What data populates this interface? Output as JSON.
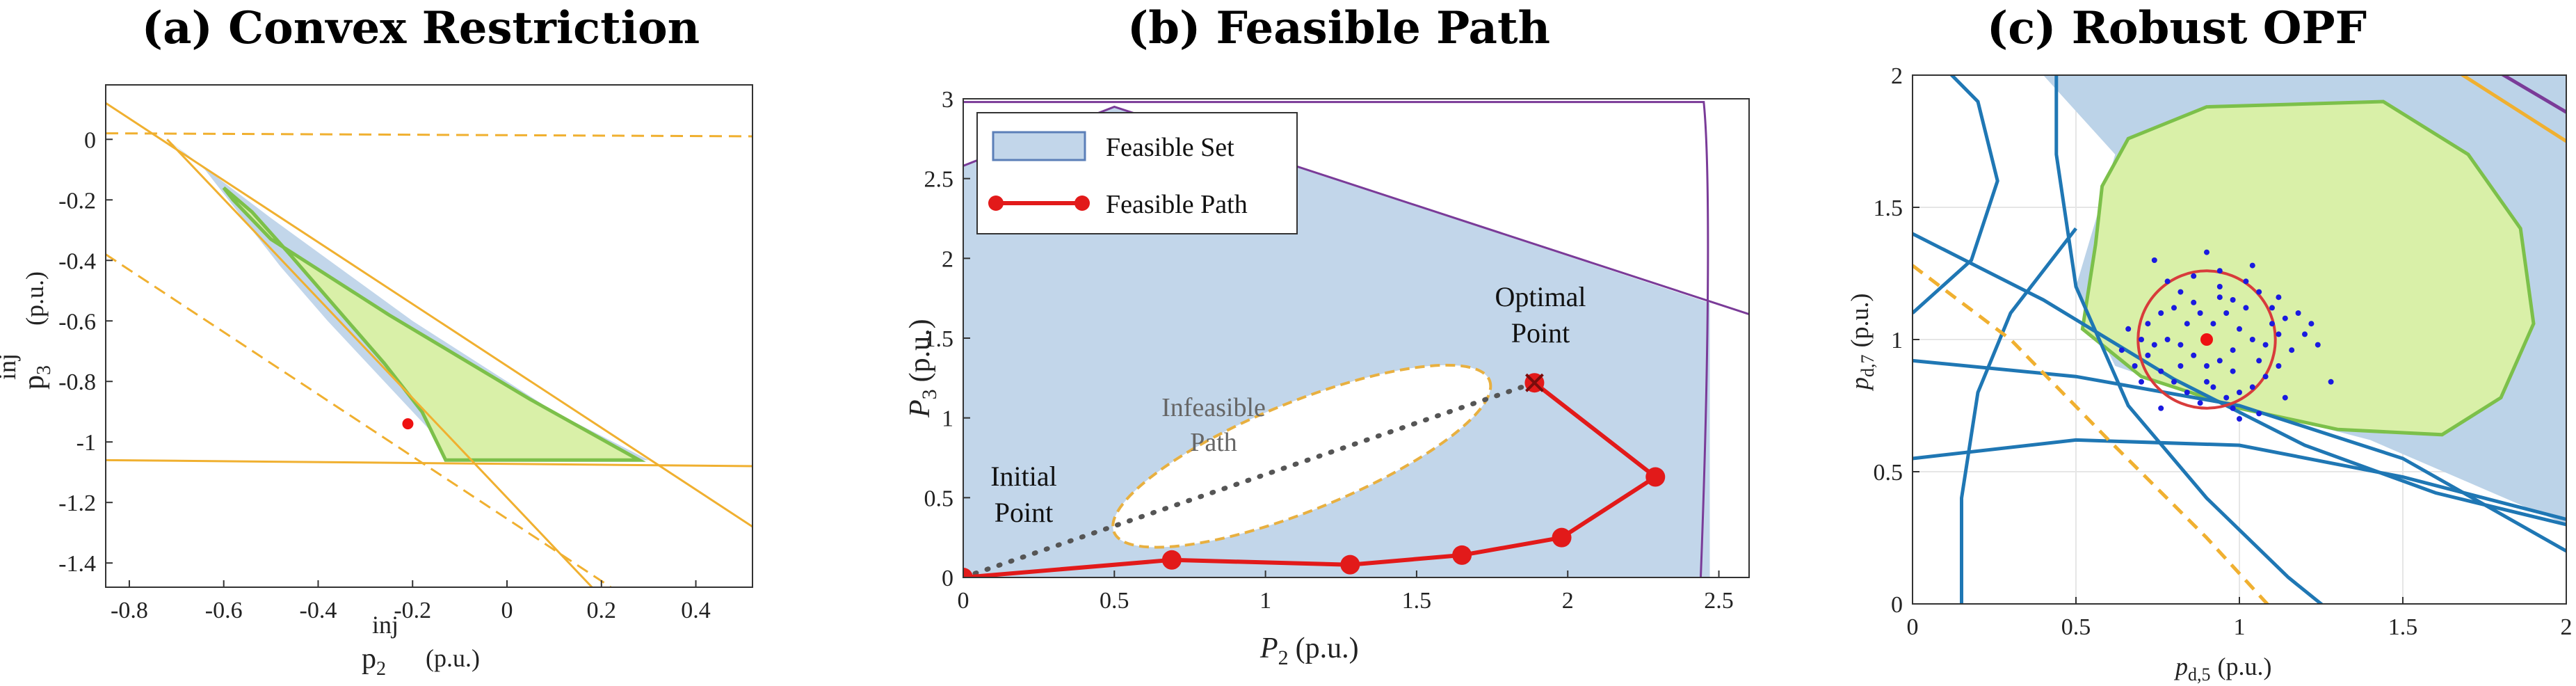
{
  "chart_data": [
    {
      "type": "area",
      "title": "(a) Convex Restriction",
      "xlabel": "p",
      "xlabel_sup": "inj",
      "xlabel_sub": "2",
      "xlabel_unit": "(p.u.)",
      "ylabel": "p",
      "ylabel_sup": "inj",
      "ylabel_sub": "3",
      "ylabel_unit": "(p.u.)",
      "xlim": [
        -0.85,
        0.52
      ],
      "ylim": [
        -1.48,
        0.18
      ],
      "xticks": [
        "-0.8",
        "-0.6",
        "-0.4",
        "-0.2",
        "0",
        "0.2",
        "0.4"
      ],
      "xtick_values": [
        -0.8,
        -0.6,
        -0.4,
        -0.2,
        0,
        0.2,
        0.4
      ],
      "yticks": [
        "0",
        "-0.2",
        "-0.4",
        "-0.6",
        "-0.8",
        "-1",
        "-1.2",
        "-1.4"
      ],
      "ytick_values": [
        0,
        -0.2,
        -0.4,
        -0.6,
        -0.8,
        -1,
        -1.2,
        -1.4
      ],
      "feasible_region": [
        [
          -0.72,
          0.0
        ],
        [
          -0.64,
          -0.1
        ],
        [
          -0.56,
          -0.26
        ],
        [
          -0.48,
          -0.42
        ],
        [
          -0.38,
          -0.6
        ],
        [
          -0.26,
          -0.8
        ],
        [
          -0.14,
          -1.0
        ],
        [
          -0.1,
          -1.06
        ],
        [
          0.3,
          -1.06
        ],
        [
          0.1,
          -0.9
        ],
        [
          -0.2,
          -0.6
        ],
        [
          -0.5,
          -0.26
        ]
      ],
      "convex_restriction": [
        [
          -0.6,
          -0.16
        ],
        [
          -0.54,
          -0.24
        ],
        [
          -0.46,
          -0.38
        ],
        [
          -0.36,
          -0.56
        ],
        [
          -0.26,
          -0.74
        ],
        [
          -0.18,
          -0.9
        ],
        [
          -0.13,
          -1.06
        ],
        [
          0.28,
          -1.06
        ],
        [
          0.05,
          -0.86
        ],
        [
          -0.25,
          -0.58
        ],
        [
          -0.5,
          -0.33
        ],
        [
          -0.58,
          -0.2
        ]
      ],
      "operating_point": {
        "x": -0.21,
        "y": -0.94
      },
      "constraint_lines_solid": [
        [
          [
            -0.85,
            0.12
          ],
          [
            0.52,
            -1.28
          ]
        ],
        [
          [
            -0.85,
            -1.06
          ],
          [
            0.52,
            -1.08
          ]
        ],
        [
          [
            -0.72,
            0.0
          ],
          [
            0.18,
            -1.48
          ]
        ]
      ],
      "constraint_lines_dashed": [
        [
          [
            -0.85,
            0.02
          ],
          [
            0.52,
            0.01
          ]
        ],
        [
          [
            -0.85,
            -0.38
          ],
          [
            0.22,
            -1.48
          ]
        ]
      ],
      "colors": {
        "feasible": "#c2d6ea",
        "restriction": "#d9f0a8",
        "restriction_edge": "#7cc04a",
        "constraint": "#f0b030",
        "point": "#ee1111"
      }
    },
    {
      "type": "area",
      "title": "(b) Feasible Path",
      "xlabel": "P",
      "xlabel_sub": "2",
      "xlabel_unit": "(p.u.)",
      "ylabel": "P",
      "ylabel_sub": "3",
      "ylabel_unit": "(p.u.)",
      "xlim": [
        0,
        2.6
      ],
      "ylim": [
        0,
        3
      ],
      "xticks": [
        "0",
        "0.5",
        "1",
        "1.5",
        "2",
        "2.5"
      ],
      "xtick_values": [
        0,
        0.5,
        1,
        1.5,
        2,
        2.5
      ],
      "yticks": [
        "0",
        "0.5",
        "1",
        "1.5",
        "2",
        "2.5",
        "3"
      ],
      "ytick_values": [
        0,
        0.5,
        1,
        1.5,
        2,
        2.5,
        3
      ],
      "legend": [
        "Feasible Set",
        "Feasible Path"
      ],
      "legend_position": "top-left",
      "infeasible_ellipse": {
        "cx": 1.12,
        "cy": 0.76,
        "rx": 0.67,
        "ry": 0.34,
        "angle_deg": 22
      },
      "feasible_path": [
        [
          0,
          0
        ],
        [
          0.69,
          0.11
        ],
        [
          1.28,
          0.08
        ],
        [
          1.65,
          0.14
        ],
        [
          1.98,
          0.25
        ],
        [
          2.29,
          0.63
        ],
        [
          1.89,
          1.22
        ]
      ],
      "straight_path": [
        [
          0,
          0
        ],
        [
          1.89,
          1.22
        ]
      ],
      "optimal_point": {
        "x": 1.89,
        "y": 1.22
      },
      "annotations": {
        "optimal_line1": "Optimal",
        "optimal_line2": "Point",
        "initial_line1": "Initial",
        "initial_line2": "Point",
        "infeasible_line1": "Infeasible",
        "infeasible_line2": "Path"
      },
      "colors": {
        "feasible": "#c2d6ea",
        "path": "#e21a1a",
        "dotted": "#555555",
        "boundary": "#7a3b98",
        "ellipse_edge": "#e8b040"
      }
    },
    {
      "type": "scatter",
      "title": "(c) Robust OPF",
      "xlabel": "p",
      "xlabel_sub": "d,5",
      "xlabel_unit": "(p.u.)",
      "ylabel": "p",
      "ylabel_sub": "d,7",
      "ylabel_unit": "(p.u.)",
      "xlim": [
        0,
        2
      ],
      "ylim": [
        0,
        2
      ],
      "xticks": [
        "0",
        "0.5",
        "1",
        "1.5",
        "2"
      ],
      "xtick_values": [
        0,
        0.5,
        1,
        1.5,
        2
      ],
      "yticks": [
        "0",
        "0.5",
        "1",
        "1.5",
        "2"
      ],
      "ytick_values": [
        0,
        0.5,
        1,
        1.5,
        2
      ],
      "center_point": {
        "x": 0.9,
        "y": 1.0
      },
      "uncertainty_circle": {
        "cx": 0.9,
        "cy": 1.0,
        "r": 0.21
      },
      "samples": [
        [
          0.74,
          1.3
        ],
        [
          0.78,
          1.22
        ],
        [
          0.82,
          1.18
        ],
        [
          0.86,
          1.24
        ],
        [
          0.9,
          1.33
        ],
        [
          0.94,
          1.2
        ],
        [
          0.98,
          1.15
        ],
        [
          1.02,
          1.22
        ],
        [
          1.06,
          1.18
        ],
        [
          1.1,
          1.12
        ],
        [
          1.14,
          1.08
        ],
        [
          1.18,
          1.1
        ],
        [
          1.2,
          1.02
        ],
        [
          1.16,
          0.96
        ],
        [
          1.12,
          0.9
        ],
        [
          1.08,
          0.86
        ],
        [
          1.04,
          0.82
        ],
        [
          1.0,
          0.8
        ],
        [
          0.96,
          0.78
        ],
        [
          0.92,
          0.82
        ],
        [
          0.88,
          0.76
        ],
        [
          0.84,
          0.8
        ],
        [
          0.8,
          0.84
        ],
        [
          0.76,
          0.88
        ],
        [
          0.72,
          0.94
        ],
        [
          0.7,
          1.0
        ],
        [
          0.72,
          1.06
        ],
        [
          0.76,
          1.1
        ],
        [
          0.8,
          1.12
        ],
        [
          0.84,
          1.06
        ],
        [
          0.88,
          1.1
        ],
        [
          0.92,
          1.06
        ],
        [
          0.96,
          1.1
        ],
        [
          1.0,
          1.04
        ],
        [
          1.04,
          1.0
        ],
        [
          1.08,
          0.98
        ],
        [
          1.12,
          1.02
        ],
        [
          0.98,
          0.96
        ],
        [
          0.94,
          0.92
        ],
        [
          0.9,
          0.9
        ],
        [
          0.86,
          0.94
        ],
        [
          0.82,
          0.98
        ],
        [
          0.78,
          1.0
        ],
        [
          0.86,
          1.14
        ],
        [
          0.94,
          1.16
        ],
        [
          1.02,
          1.12
        ],
        [
          1.1,
          1.06
        ],
        [
          1.06,
          0.92
        ],
        [
          0.98,
          0.88
        ],
        [
          0.9,
          0.84
        ],
        [
          0.82,
          0.9
        ],
        [
          0.74,
          0.98
        ],
        [
          0.68,
          0.9
        ],
        [
          0.66,
          1.04
        ],
        [
          0.98,
          0.74
        ],
        [
          1.06,
          0.72
        ],
        [
          0.94,
          1.26
        ],
        [
          1.04,
          1.28
        ],
        [
          1.12,
          1.16
        ],
        [
          1.22,
          1.06
        ],
        [
          1.24,
          0.98
        ],
        [
          1.28,
          0.84
        ],
        [
          0.7,
          0.84
        ],
        [
          0.64,
          0.96
        ],
        [
          0.76,
          0.74
        ],
        [
          1.0,
          0.7
        ],
        [
          1.14,
          0.78
        ]
      ],
      "feasible_region": [
        [
          0.4,
          2.0
        ],
        [
          0.62,
          1.7
        ],
        [
          0.5,
          1.2
        ],
        [
          0.62,
          0.9
        ],
        [
          0.9,
          0.78
        ],
        [
          1.4,
          0.62
        ],
        [
          2.0,
          0.3
        ],
        [
          2.0,
          2.0
        ]
      ],
      "inner_region": [
        [
          0.56,
          1.36
        ],
        [
          0.58,
          1.58
        ],
        [
          0.66,
          1.76
        ],
        [
          0.9,
          1.88
        ],
        [
          1.44,
          1.9
        ],
        [
          1.7,
          1.7
        ],
        [
          1.86,
          1.42
        ],
        [
          1.9,
          1.06
        ],
        [
          1.8,
          0.78
        ],
        [
          1.62,
          0.64
        ],
        [
          1.3,
          0.66
        ],
        [
          1.0,
          0.74
        ],
        [
          0.7,
          0.86
        ],
        [
          0.52,
          1.04
        ]
      ],
      "colors": {
        "feasible": "#bcd3e8",
        "inner": "#d9f0a8",
        "inner_edge": "#7cc04a",
        "constraint": "#1f77b4",
        "dashed": "#f0b030",
        "circle": "#d83b3b",
        "samples": "#1a1ae0",
        "center": "#ee1111",
        "corner1": "#7a3b98",
        "corner2": "#f0b030"
      }
    }
  ]
}
